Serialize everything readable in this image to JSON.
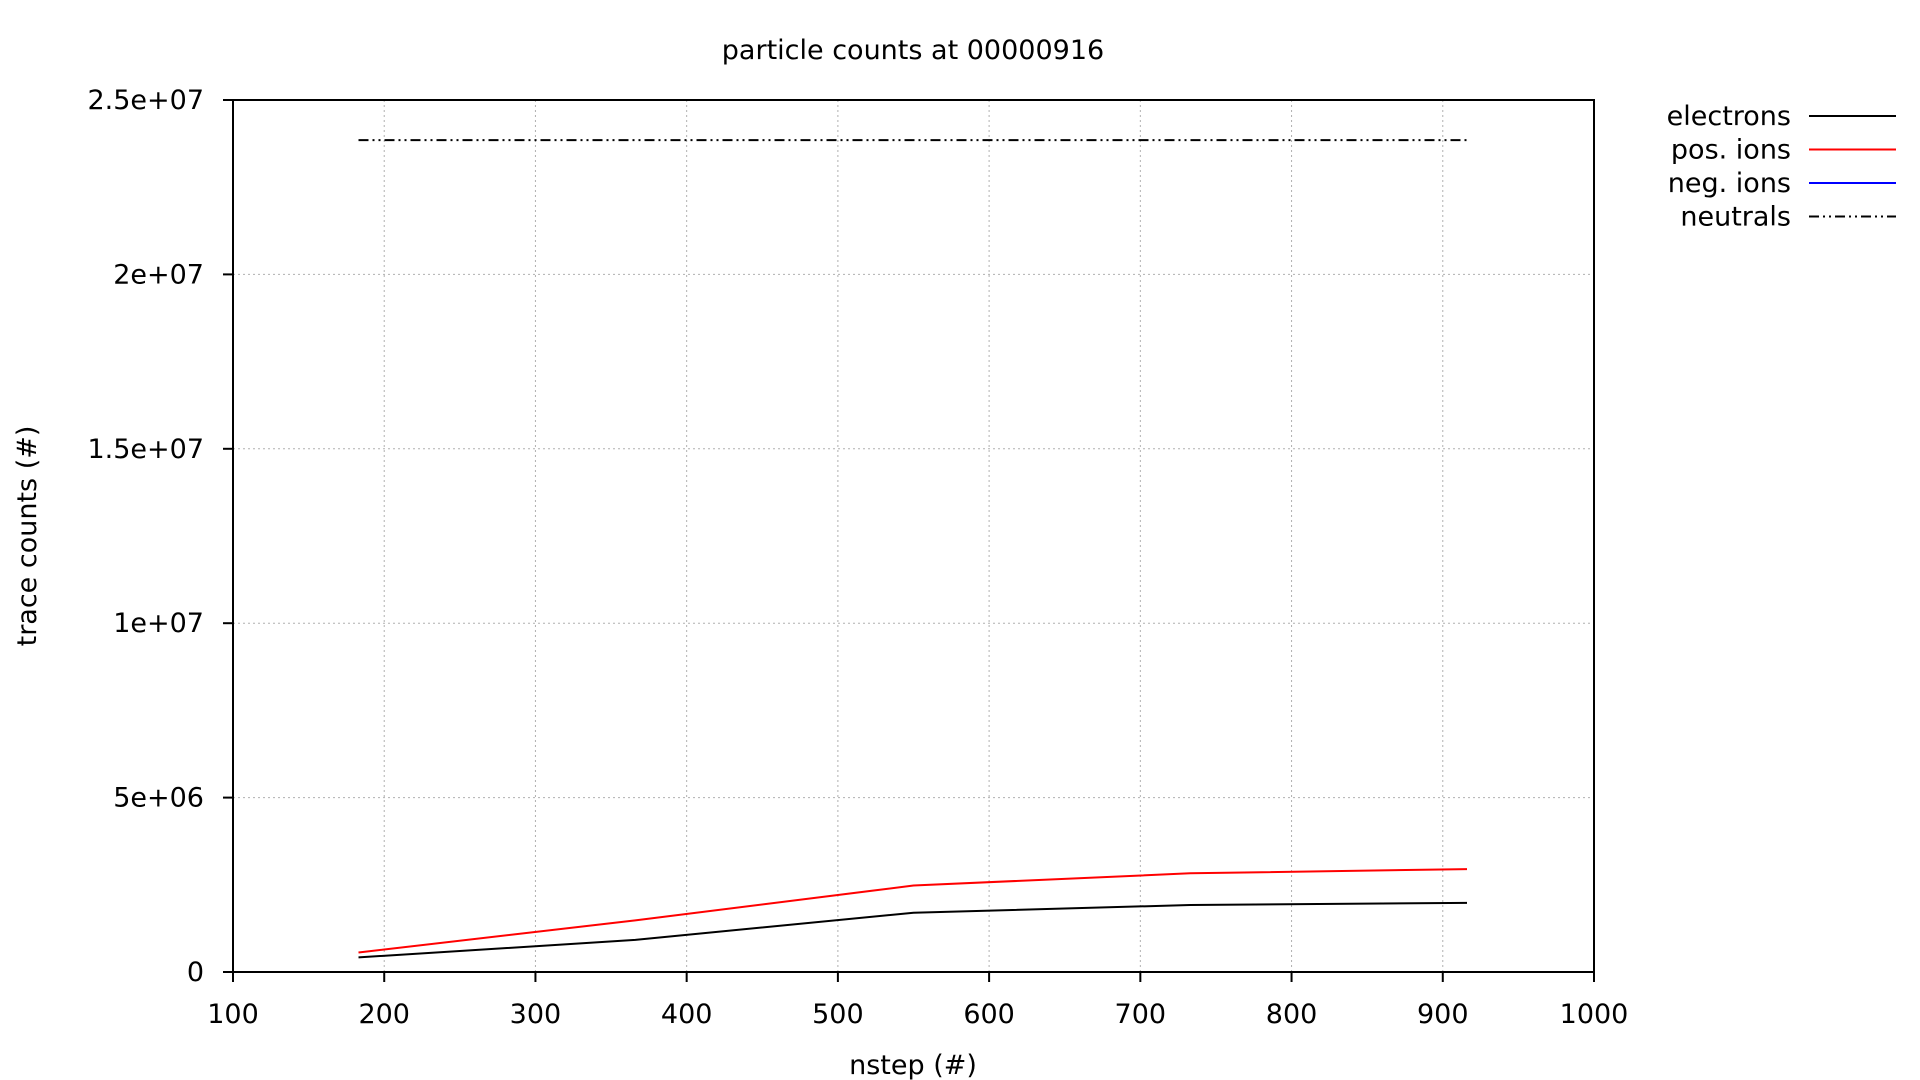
{
  "chart_data": {
    "type": "line",
    "title": "particle counts at 00000916",
    "xlabel": "nstep (#)",
    "ylabel": "trace counts (#)",
    "xlim": [
      100,
      1000
    ],
    "ylim": [
      0,
      25000000
    ],
    "x_ticks": [
      100,
      200,
      300,
      400,
      500,
      600,
      700,
      800,
      900,
      1000
    ],
    "x_tick_labels": [
      "100",
      "200",
      "300",
      "400",
      "500",
      "600",
      "700",
      "800",
      "900",
      "1000"
    ],
    "y_ticks": [
      0,
      5000000,
      10000000,
      15000000,
      20000000,
      25000000
    ],
    "y_tick_labels": [
      "0",
      "5e+06",
      "1e+07",
      "1.5e+07",
      "2e+07",
      "2.5e+07"
    ],
    "grid": true,
    "legend_position": "outside-top-right",
    "x": [
      183,
      366,
      550,
      733,
      916
    ],
    "series": [
      {
        "name": "electrons",
        "color": "#000000",
        "dash": "solid",
        "values": [
          420000,
          920000,
          1700000,
          1920000,
          1980000
        ]
      },
      {
        "name": "pos. ions",
        "color": "#ff0000",
        "dash": "solid",
        "values": [
          560000,
          1480000,
          2480000,
          2830000,
          2950000
        ]
      },
      {
        "name": "neg. ions",
        "color": "#0000ff",
        "dash": "solid",
        "values": [
          0,
          0,
          0,
          0,
          0
        ]
      },
      {
        "name": "neutrals",
        "color": "#000000",
        "dash": "dash-dot-dot",
        "values": [
          23850000,
          23850000,
          23850000,
          23850000,
          23850000
        ]
      }
    ]
  }
}
